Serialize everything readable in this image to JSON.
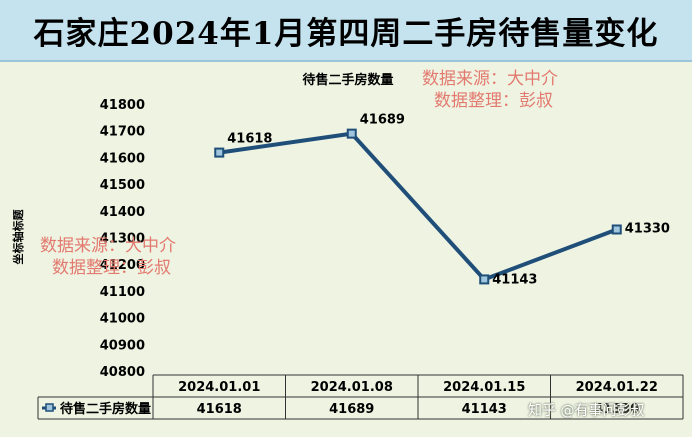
{
  "banner_title": "石家庄2024年1月第四周二手房待售量变化",
  "watermark": {
    "line1": "数据来源：大中介",
    "line2": "数据整理：彭叔"
  },
  "footer_watermark": "知乎 @有事问彭叔",
  "colors": {
    "banner": "#c5e3ef",
    "panel": "#eef3e2",
    "series": "#1f4e79",
    "watermark": "#e37a6f"
  },
  "chart_data": {
    "type": "line",
    "title": "待售二手房数量",
    "ylabel": "坐标轴标题",
    "xlabel": "",
    "categories": [
      "2024.01.01",
      "2024.01.08",
      "2024.01.15",
      "2024.01.22"
    ],
    "series": [
      {
        "name": "待售二手房数量",
        "values": [
          41618,
          41689,
          41143,
          41330
        ]
      }
    ],
    "ylim": [
      40800,
      41800
    ],
    "yticks": [
      40800,
      40900,
      41000,
      41100,
      41200,
      41300,
      41400,
      41500,
      41600,
      41700,
      41800
    ],
    "data_labels": true,
    "data_table": true,
    "grid": false
  }
}
